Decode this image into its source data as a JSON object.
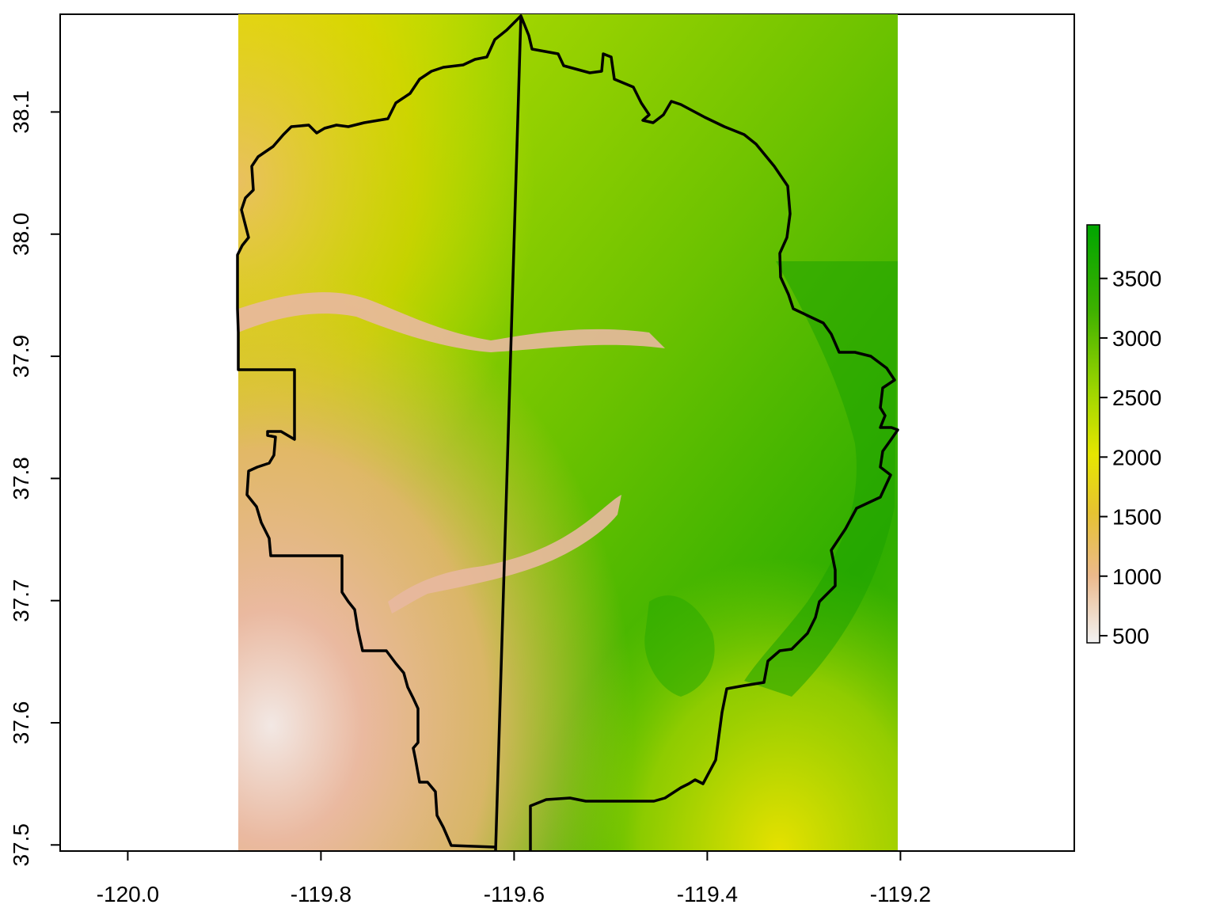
{
  "map": {
    "x_axis": {
      "range": [
        -120.07,
        -119.02
      ],
      "ticks": [
        -120.0,
        -119.8,
        -119.6,
        -119.4,
        -119.2
      ],
      "tick_labels": [
        "-120.0",
        "-119.8",
        "-119.6",
        "-119.4",
        "-119.2"
      ]
    },
    "y_axis": {
      "range": [
        37.495,
        38.18
      ],
      "ticks": [
        37.5,
        37.6,
        37.7,
        37.8,
        37.9,
        38.0,
        38.1
      ],
      "tick_labels": [
        "37.5",
        "37.6",
        "37.7",
        "37.8",
        "37.9",
        "38.0",
        "38.1"
      ]
    },
    "raster_extent": {
      "lon": [
        -119.886,
        -119.2
      ],
      "lat": [
        37.495,
        38.18
      ]
    },
    "legend": {
      "placement": "right",
      "range": [
        440,
        3950
      ],
      "ticks": [
        500,
        1000,
        1500,
        2000,
        2500,
        3000,
        3500
      ],
      "tick_labels": [
        "500",
        "1000",
        "1500",
        "2000",
        "2500",
        "3000",
        "3500"
      ],
      "colors": [
        "#F2F2F2",
        "#EBB98C",
        "#E6C232",
        "#E6E600",
        "#9FD600",
        "#3CB000",
        "#00A600"
      ]
    },
    "colors": {
      "boundary": "#000000",
      "frame": "#000000"
    }
  }
}
